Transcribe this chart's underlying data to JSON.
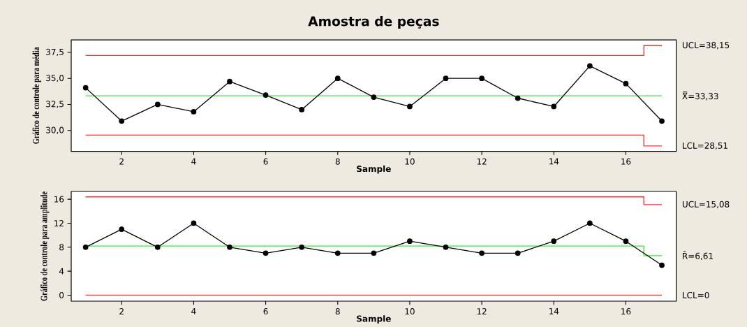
{
  "chart_data": [
    {
      "type": "line",
      "title": "Amostra de peças",
      "xlabel": "Sample",
      "ylabel": "Gráfico de controle para média",
      "xlim": [
        0.6,
        17.4
      ],
      "xticks": [
        2,
        4,
        6,
        8,
        10,
        12,
        14,
        16
      ],
      "ylim": [
        28.0,
        38.7
      ],
      "yticks": [
        {
          "value": 30,
          "label": "30,0"
        },
        {
          "value": 32.5,
          "label": "32,5"
        },
        {
          "value": 35,
          "label": "35,0"
        },
        {
          "value": 37.5,
          "label": "37,5"
        }
      ],
      "series": [
        {
          "color": "#ff3030",
          "x": [
            1,
            16.5,
            16.5,
            17
          ],
          "values": [
            37.2,
            37.2,
            38.15,
            38.15
          ]
        },
        {
          "color": "#30f030",
          "x": [
            1,
            17
          ],
          "values": [
            33.33,
            33.33
          ]
        },
        {
          "color": "#ff3030",
          "x": [
            1,
            16.5,
            16.5,
            17
          ],
          "values": [
            29.55,
            29.55,
            28.51,
            28.51
          ]
        },
        {
          "color": "#000000",
          "marker": "circle",
          "x": [
            1,
            2,
            3,
            4,
            5,
            6,
            7,
            8,
            9,
            10,
            11,
            12,
            13,
            14,
            15,
            16,
            17
          ],
          "values": [
            34.1,
            30.9,
            32.5,
            31.8,
            34.7,
            33.4,
            32.0,
            35.0,
            33.2,
            32.3,
            35.0,
            35.0,
            33.1,
            32.3,
            36.2,
            34.5,
            30.9
          ]
        }
      ],
      "annotations": [
        "UCL=38,15",
        "X̿=33,33",
        "LCL=28,51"
      ]
    },
    {
      "type": "line",
      "xlabel": "Sample",
      "ylabel": "Gráfico de controle para amplitude",
      "xlim": [
        0.6,
        17.4
      ],
      "xticks": [
        2,
        4,
        6,
        8,
        10,
        12,
        14,
        16
      ],
      "ylim": [
        -1.0,
        17.3
      ],
      "yticks": [
        0,
        4,
        8,
        12,
        16
      ],
      "series": [
        {
          "color": "#ff3030",
          "x": [
            1,
            16.5,
            16.5,
            17
          ],
          "values": [
            16.4,
            16.4,
            15.1,
            15.1
          ]
        },
        {
          "color": "#30f030",
          "x": [
            1,
            16.5,
            16.5,
            17
          ],
          "values": [
            8.2,
            8.2,
            6.6,
            6.6
          ]
        },
        {
          "color": "#ff3030",
          "x": [
            1,
            17
          ],
          "values": [
            0,
            0
          ]
        },
        {
          "color": "#000000",
          "marker": "circle",
          "x": [
            1,
            2,
            3,
            4,
            5,
            6,
            7,
            8,
            9,
            10,
            11,
            12,
            13,
            14,
            15,
            16,
            17
          ],
          "values": [
            8,
            11,
            8,
            12,
            8,
            7,
            8,
            7,
            7,
            9,
            8,
            7,
            7,
            9,
            12,
            9,
            5
          ]
        }
      ],
      "annotations": [
        "UCL=15,08",
        "R̄=6,61",
        "LCL=0"
      ]
    }
  ]
}
